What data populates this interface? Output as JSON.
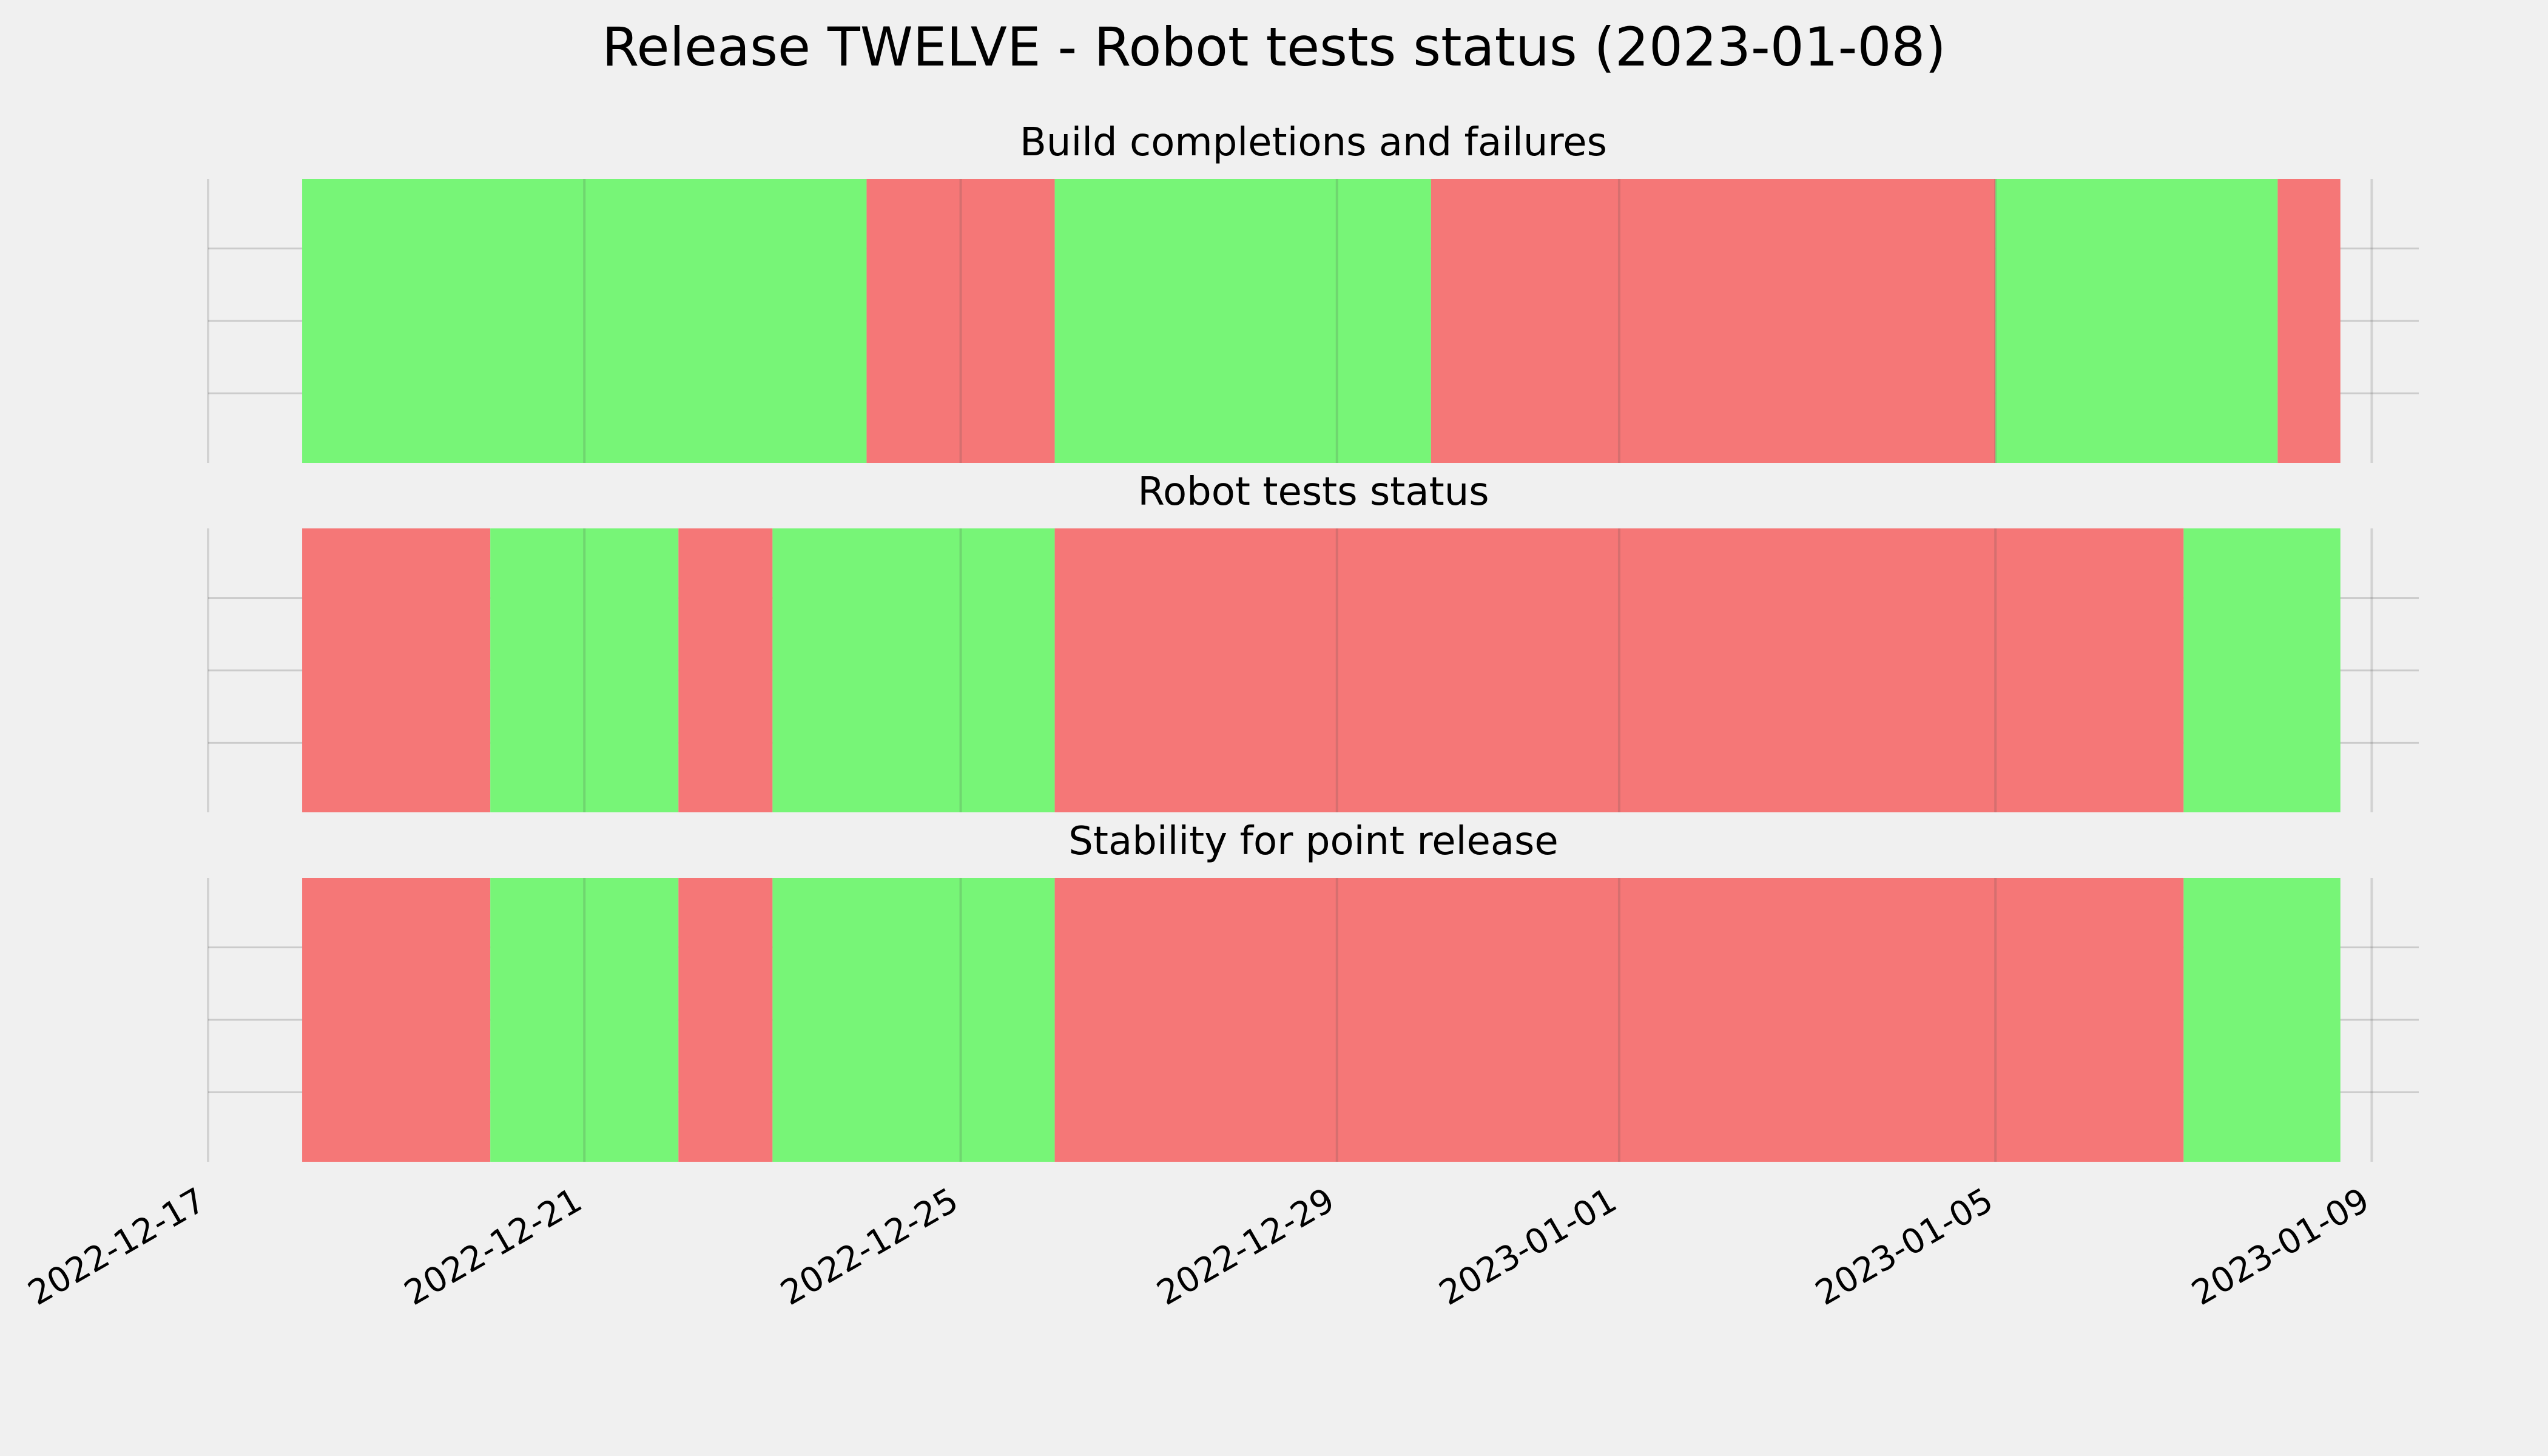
{
  "chart_data": {
    "type": "timeline-status",
    "title": "Release TWELVE - Robot tests status (2023-01-08)",
    "colors": {
      "success": "#77f577",
      "failure": "#f57777",
      "background": "#f0f0f0",
      "grid": "#cbcbcb"
    },
    "x_axis": {
      "type": "date",
      "range": [
        "2022-12-17",
        "2023-01-09T12:00"
      ],
      "ticks": [
        "2022-12-17",
        "2022-12-21",
        "2022-12-25",
        "2022-12-29",
        "2023-01-01",
        "2023-01-05",
        "2023-01-09"
      ],
      "tick_labels": [
        "2022-12-17",
        "2022-12-21",
        "2022-12-25",
        "2022-12-29",
        "2023-01-01",
        "2023-01-05",
        "2023-01-09"
      ]
    },
    "grid": true,
    "panels": [
      {
        "title": "Build completions and failures",
        "segments": [
          {
            "start": "2022-12-18T00:00",
            "end": "2022-12-24T00:00",
            "status": "success"
          },
          {
            "start": "2022-12-24T00:00",
            "end": "2022-12-26T00:00",
            "status": "failure"
          },
          {
            "start": "2022-12-26T00:00",
            "end": "2022-12-30T00:00",
            "status": "success"
          },
          {
            "start": "2022-12-30T00:00",
            "end": "2023-01-05T00:00",
            "status": "failure"
          },
          {
            "start": "2023-01-05T00:00",
            "end": "2023-01-08T00:00",
            "status": "success"
          },
          {
            "start": "2023-01-08T00:00",
            "end": "2023-01-08T16:00",
            "status": "failure"
          }
        ]
      },
      {
        "title": "Robot tests status",
        "segments": [
          {
            "start": "2022-12-18T00:00",
            "end": "2022-12-20T00:00",
            "status": "failure"
          },
          {
            "start": "2022-12-20T00:00",
            "end": "2022-12-22T00:00",
            "status": "success"
          },
          {
            "start": "2022-12-22T00:00",
            "end": "2022-12-23T00:00",
            "status": "failure"
          },
          {
            "start": "2022-12-23T00:00",
            "end": "2022-12-26T00:00",
            "status": "success"
          },
          {
            "start": "2022-12-26T00:00",
            "end": "2023-01-07T00:00",
            "status": "failure"
          },
          {
            "start": "2023-01-07T00:00",
            "end": "2023-01-08T16:00",
            "status": "success"
          }
        ]
      },
      {
        "title": "Stability for point release",
        "segments": [
          {
            "start": "2022-12-18T00:00",
            "end": "2022-12-20T00:00",
            "status": "failure"
          },
          {
            "start": "2022-12-20T00:00",
            "end": "2022-12-22T00:00",
            "status": "success"
          },
          {
            "start": "2022-12-22T00:00",
            "end": "2022-12-23T00:00",
            "status": "failure"
          },
          {
            "start": "2022-12-23T00:00",
            "end": "2022-12-26T00:00",
            "status": "success"
          },
          {
            "start": "2022-12-26T00:00",
            "end": "2023-01-07T00:00",
            "status": "failure"
          },
          {
            "start": "2023-01-07T00:00",
            "end": "2023-01-08T16:00",
            "status": "success"
          }
        ]
      }
    ]
  }
}
